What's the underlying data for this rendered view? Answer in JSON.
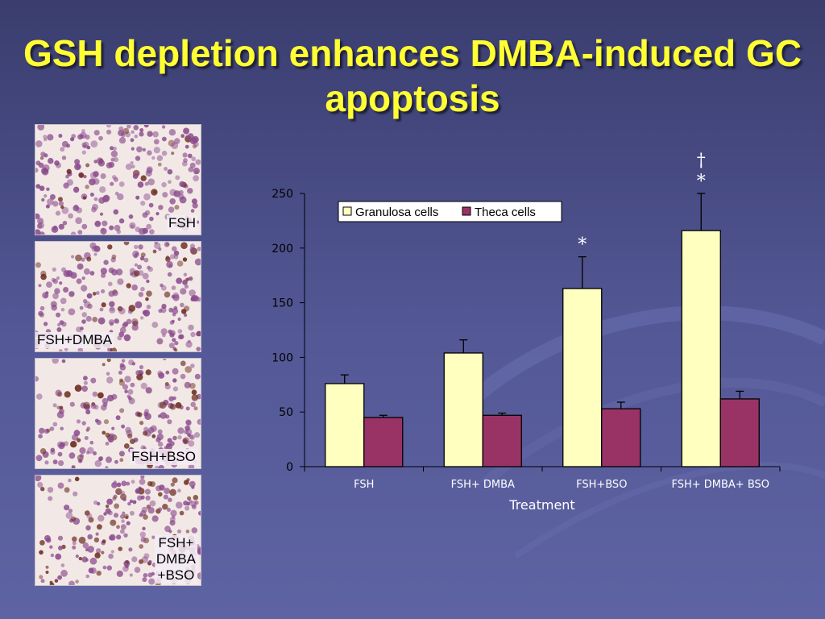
{
  "slide": {
    "title": "GSH depletion enhances DMBA-induced GC apoptosis"
  },
  "panels": [
    {
      "label_lines": [
        "FSH"
      ]
    },
    {
      "label_lines": [
        "FSH+DMBA"
      ]
    },
    {
      "label_lines": [
        "FSH+BSO"
      ]
    },
    {
      "label_lines": [
        "FSH+",
        "DMBA",
        "+BSO"
      ]
    }
  ],
  "colors": {
    "background": "#545896",
    "title": "#ffff33",
    "granulosa": "#ffffc0",
    "theca": "#993366",
    "tissue_background": "#f2e9e6",
    "stain_purple": "#8a4a8c",
    "stain_brown": "#6b2a1e"
  },
  "chart_data": {
    "type": "bar",
    "categories": [
      "FSH",
      "FSH+ DMBA",
      "FSH+BSO",
      "FSH+ DMBA+ BSO"
    ],
    "series": [
      {
        "name": "Granulosa cells",
        "color": "#ffffc0",
        "values": [
          76,
          104,
          163,
          216
        ],
        "errors": [
          8,
          12,
          29,
          34
        ]
      },
      {
        "name": "Theca cells",
        "color": "#993366",
        "values": [
          45,
          47,
          53,
          62
        ],
        "errors": [
          2,
          2,
          6,
          7
        ]
      }
    ],
    "significance": [
      {
        "category": "FSH+BSO",
        "series": "Granulosa cells",
        "marks": [
          "*"
        ]
      },
      {
        "category": "FSH+ DMBA+ BSO",
        "series": "Granulosa cells",
        "marks": [
          "†",
          "*"
        ]
      }
    ],
    "xlabel": "Treatment",
    "ylabel": "",
    "ylim": [
      0,
      250
    ],
    "yticks": [
      0,
      50,
      100,
      150,
      200,
      250
    ],
    "grid": false,
    "legend_position": "top-left"
  }
}
